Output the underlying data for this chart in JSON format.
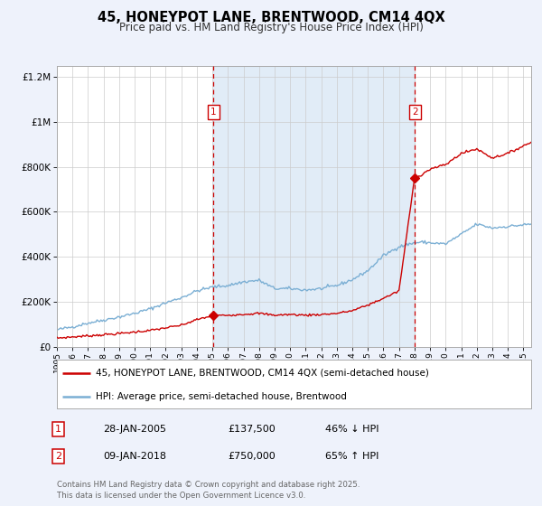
{
  "title": "45, HONEYPOT LANE, BRENTWOOD, CM14 4QX",
  "subtitle": "Price paid vs. HM Land Registry's House Price Index (HPI)",
  "bg_color": "#eef2fb",
  "plot_bg": "#ffffff",
  "red_color": "#cc0000",
  "blue_color": "#7bafd4",
  "vline_color": "#cc0000",
  "shade_color": "#dae8f5",
  "sale1_x": 2005.07,
  "sale1_y": 137500,
  "sale1_label": "1",
  "sale1_date": "28-JAN-2005",
  "sale1_price": "£137,500",
  "sale1_hpi": "46% ↓ HPI",
  "sale2_x": 2018.03,
  "sale2_y": 750000,
  "sale2_label": "2",
  "sale2_date": "09-JAN-2018",
  "sale2_price": "£750,000",
  "sale2_hpi": "65% ↑ HPI",
  "xmin": 1995,
  "xmax": 2025.5,
  "ymin": 0,
  "ymax": 1250000,
  "yticks": [
    0,
    200000,
    400000,
    600000,
    800000,
    1000000,
    1200000
  ],
  "ytick_labels": [
    "£0",
    "£200K",
    "£400K",
    "£600K",
    "£800K",
    "£1M",
    "£1.2M"
  ],
  "footer": "Contains HM Land Registry data © Crown copyright and database right 2025.\nThis data is licensed under the Open Government Licence v3.0.",
  "legend_line1": "45, HONEYPOT LANE, BRENTWOOD, CM14 4QX (semi-detached house)",
  "legend_line2": "HPI: Average price, semi-detached house, Brentwood"
}
